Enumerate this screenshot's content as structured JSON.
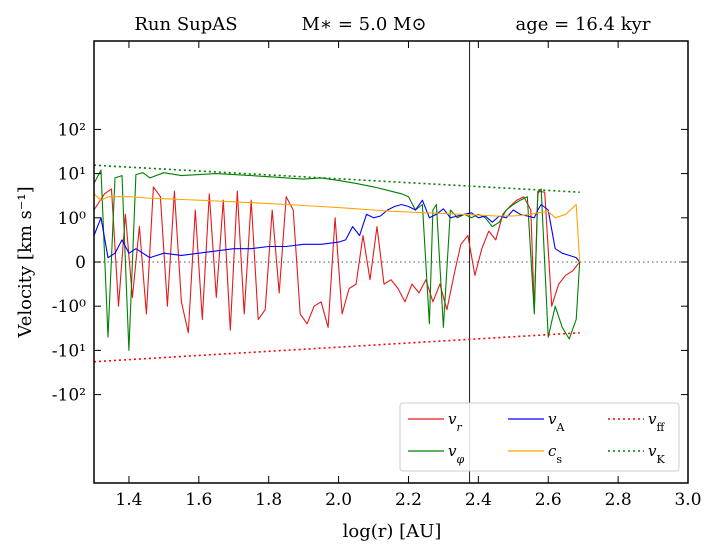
{
  "chart_data": {
    "type": "line",
    "title": {
      "run": "Run SupAS",
      "mass": "M∗ = 5.0 M⊙",
      "age": "age = 16.4 kyr"
    },
    "xlabel": "log(r) [AU]",
    "ylabel": "Velocity [km s⁻¹]",
    "xlim": [
      1.3,
      3.0
    ],
    "ylim_labels": [
      "-10²",
      "-10¹",
      "-10⁰",
      "0",
      "10⁰",
      "10¹",
      "10²"
    ],
    "x_ticks": [
      "1.4",
      "1.6",
      "1.8",
      "2.0",
      "2.2",
      "2.4",
      "2.6",
      "2.8",
      "3.0"
    ],
    "x_tick_values": [
      1.4,
      1.6,
      1.8,
      2.0,
      2.2,
      2.4,
      2.6,
      2.8,
      3.0
    ],
    "y_scale": "symlog",
    "linthresh": 1.0,
    "vertical_line_x": 2.375,
    "zero_line": true,
    "legend_position": "lower-right",
    "series": [
      {
        "name": "v_r",
        "legend": "v",
        "sub": "r",
        "color": "#e41a1c",
        "style": "solid",
        "x": [
          1.3,
          1.33,
          1.35,
          1.37,
          1.39,
          1.41,
          1.43,
          1.45,
          1.47,
          1.49,
          1.51,
          1.53,
          1.55,
          1.57,
          1.59,
          1.61,
          1.63,
          1.65,
          1.67,
          1.69,
          1.71,
          1.73,
          1.75,
          1.77,
          1.79,
          1.81,
          1.83,
          1.85,
          1.87,
          1.89,
          1.91,
          1.93,
          1.95,
          1.97,
          1.99,
          2.01,
          2.03,
          2.05,
          2.07,
          2.09,
          2.11,
          2.13,
          2.15,
          2.17,
          2.19,
          2.21,
          2.23,
          2.25,
          2.27,
          2.29,
          2.31,
          2.33,
          2.35,
          2.37,
          2.39,
          2.41,
          2.43,
          2.45,
          2.47,
          2.49,
          2.51,
          2.53,
          2.55,
          2.56,
          2.57,
          2.59,
          2.61,
          2.63,
          2.65,
          2.67,
          2.69
        ],
        "values": [
          1.5,
          3.5,
          4.5,
          -1.0,
          1.2,
          -0.8,
          0.8,
          -1.5,
          5.0,
          3.0,
          -1.0,
          4.0,
          -0.9,
          -4.0,
          1.5,
          -2.0,
          3.5,
          -0.8,
          2.5,
          -3.5,
          4.0,
          -1.5,
          2.5,
          -2.0,
          -1.2,
          1.5,
          -0.7,
          3.0,
          1.5,
          -1.5,
          -2.5,
          -1.0,
          -0.9,
          -3.0,
          1.0,
          -1.5,
          -0.6,
          -0.5,
          0.6,
          -0.4,
          0.8,
          -0.5,
          -0.4,
          -0.6,
          -0.9,
          -0.5,
          -0.7,
          -0.4,
          -0.9,
          -0.5,
          -1.2,
          -0.3,
          0.4,
          0.6,
          -0.3,
          0.3,
          0.7,
          0.5,
          1.2,
          1.8,
          2.5,
          3.0,
          1.5,
          -1.2,
          4.0,
          3.8,
          -1.0,
          -0.5,
          -0.3,
          -0.2,
          0.0
        ]
      },
      {
        "name": "v_phi",
        "legend": "v",
        "sub": "φ",
        "color": "#008000",
        "style": "solid",
        "x": [
          1.3,
          1.32,
          1.34,
          1.36,
          1.38,
          1.4,
          1.42,
          1.44,
          1.46,
          1.5,
          1.55,
          1.6,
          1.65,
          1.7,
          1.75,
          1.8,
          1.85,
          1.9,
          1.95,
          2.0,
          2.05,
          2.1,
          2.15,
          2.18,
          2.2,
          2.22,
          2.24,
          2.26,
          2.27,
          2.28,
          2.3,
          2.32,
          2.34,
          2.36,
          2.38,
          2.4,
          2.42,
          2.44,
          2.46,
          2.48,
          2.5,
          2.52,
          2.54,
          2.56,
          2.57,
          2.58,
          2.6,
          2.62,
          2.64,
          2.66,
          2.68,
          2.69
        ],
        "values": [
          6.0,
          12.0,
          -5.0,
          8.0,
          9.0,
          -10.0,
          9.5,
          10.5,
          8.0,
          10.5,
          9.0,
          9.5,
          10.0,
          9.5,
          9.0,
          8.5,
          8.0,
          7.5,
          8.0,
          7.0,
          6.0,
          5.0,
          4.0,
          3.5,
          3.0,
          1.5,
          2.0,
          -2.5,
          1.5,
          2.0,
          -3.0,
          1.5,
          1.0,
          1.2,
          1.0,
          1.2,
          1.0,
          0.8,
          0.9,
          1.5,
          2.0,
          2.5,
          3.0,
          -1.5,
          3.5,
          4.5,
          -5.0,
          -1.0,
          -3.0,
          -5.5,
          -2.0,
          0.0
        ]
      },
      {
        "name": "v_A",
        "legend": "v",
        "sub": "A",
        "color": "#0000ff",
        "style": "solid",
        "x": [
          1.3,
          1.32,
          1.34,
          1.36,
          1.38,
          1.4,
          1.42,
          1.44,
          1.46,
          1.5,
          1.55,
          1.6,
          1.65,
          1.7,
          1.75,
          1.8,
          1.85,
          1.9,
          1.95,
          2.0,
          2.02,
          2.04,
          2.06,
          2.08,
          2.1,
          2.12,
          2.14,
          2.16,
          2.18,
          2.2,
          2.22,
          2.24,
          2.26,
          2.28,
          2.3,
          2.32,
          2.34,
          2.36,
          2.38,
          2.4,
          2.42,
          2.44,
          2.46,
          2.48,
          2.5,
          2.52,
          2.54,
          2.56,
          2.57,
          2.58,
          2.6,
          2.62,
          2.64,
          2.66,
          2.68,
          2.69
        ],
        "values": [
          0.6,
          1.0,
          0.1,
          0.2,
          0.5,
          0.2,
          0.3,
          0.2,
          0.1,
          0.2,
          0.15,
          0.2,
          0.25,
          0.3,
          0.3,
          0.35,
          0.35,
          0.4,
          0.4,
          0.45,
          0.5,
          0.8,
          0.6,
          1.2,
          1.0,
          1.1,
          1.5,
          1.8,
          2.0,
          1.8,
          1.5,
          2.5,
          1.0,
          1.2,
          1.6,
          1.0,
          1.1,
          1.2,
          1.3,
          1.0,
          1.1,
          0.9,
          1.1,
          1.0,
          1.5,
          1.2,
          1.1,
          1.0,
          1.5,
          2.0,
          1.5,
          0.3,
          0.2,
          0.15,
          0.1,
          0.0
        ]
      },
      {
        "name": "c_s",
        "legend": "c",
        "sub": "s",
        "color": "#ffa500",
        "style": "solid",
        "x": [
          1.3,
          1.32,
          1.34,
          1.4,
          1.45,
          1.5,
          1.55,
          1.6,
          1.65,
          1.7,
          1.75,
          1.8,
          1.85,
          1.9,
          1.95,
          2.0,
          2.05,
          2.1,
          2.15,
          2.2,
          2.25,
          2.3,
          2.35,
          2.4,
          2.45,
          2.5,
          2.55,
          2.57,
          2.6,
          2.62,
          2.65,
          2.68,
          2.69
        ],
        "values": [
          3.5,
          2.5,
          3.0,
          3.0,
          2.8,
          2.7,
          2.6,
          2.5,
          2.4,
          2.3,
          2.2,
          2.1,
          2.0,
          1.9,
          1.8,
          1.7,
          1.6,
          1.5,
          1.4,
          1.35,
          1.3,
          1.25,
          1.2,
          1.15,
          1.1,
          1.1,
          1.2,
          1.3,
          1.4,
          1.0,
          1.2,
          2.0,
          0.0
        ]
      },
      {
        "name": "v_ff",
        "legend": "v",
        "sub": "ff",
        "color": "#ff0000",
        "style": "dotted",
        "x": [
          1.3,
          2.69
        ],
        "values": [
          -18.0,
          -4.0
        ]
      },
      {
        "name": "v_K",
        "legend": "v",
        "sub": "K",
        "color": "#008000",
        "style": "dotted",
        "x": [
          1.3,
          2.69
        ],
        "values": [
          15.5,
          3.8
        ]
      }
    ]
  }
}
